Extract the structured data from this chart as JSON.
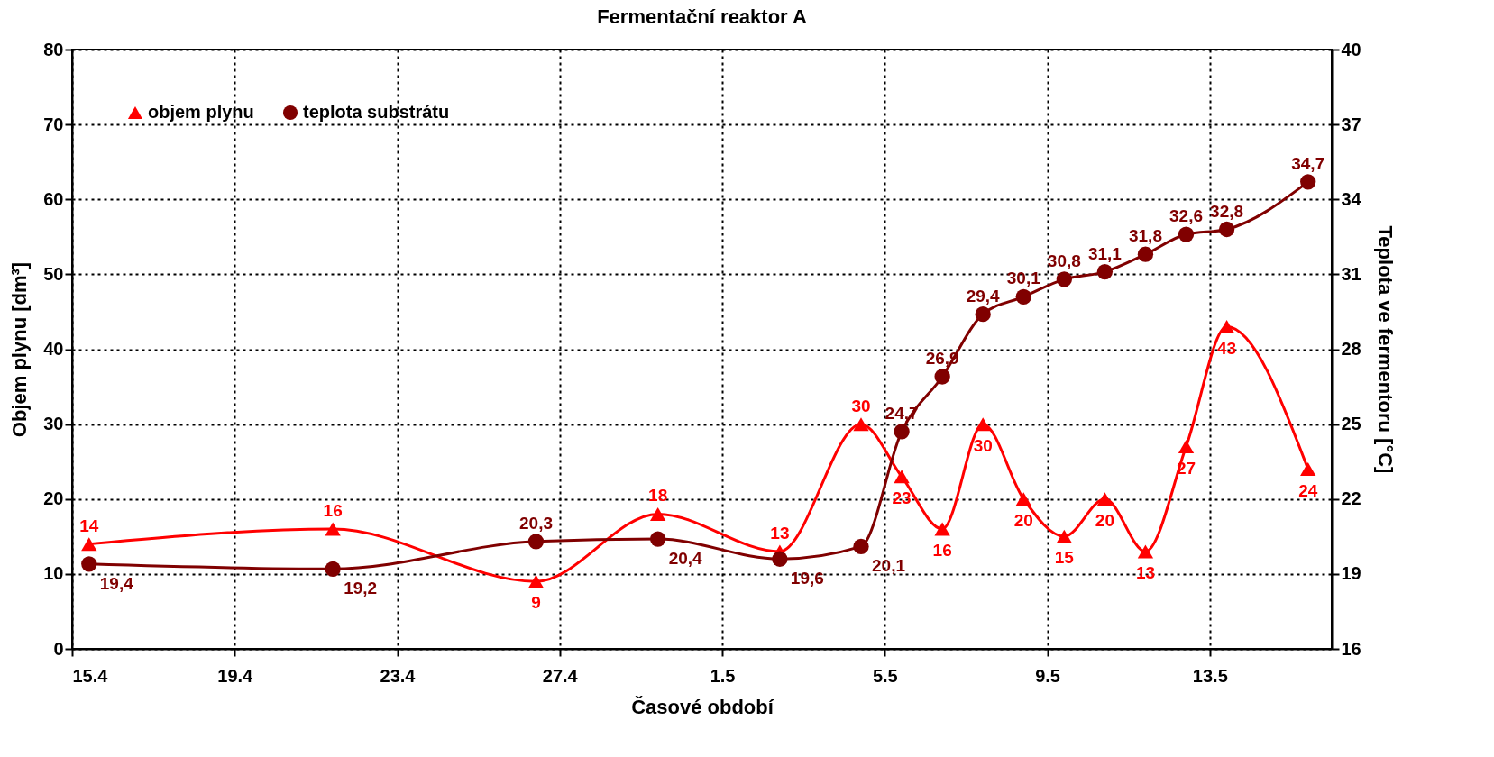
{
  "chart_data": {
    "type": "line",
    "title": "Fermentační reaktor A",
    "xlabel": "Časové období",
    "ylabel": "Objem plynu [dm³]",
    "y2label": "Teplota ve fermentoru [°C]",
    "x": [
      "--04-15T10:00",
      "--04-21T10:00",
      "--04-26T10:00",
      "--04-29T10:00",
      "--05-02T10:00",
      "--05-04T10:00",
      "--05-05T10:00",
      "--05-06T10:00",
      "--05-07T10:00",
      "--05-08T10:00",
      "--05-09T10:00",
      "--05-10T10:00",
      "--05-11T10:00",
      "--05-12T10:00",
      "--05-13T10:00",
      "--05-15T10:00"
    ],
    "series": [
      {
        "name": "objem plynu",
        "color": "#ff0000",
        "marker": "triangle",
        "values": [
          14,
          16,
          9,
          18,
          13,
          30,
          23,
          16,
          30,
          20,
          15,
          20,
          13,
          27,
          43,
          24
        ],
        "value_labels": [
          "14",
          "16",
          "9",
          "18",
          "13",
          "30",
          "23",
          "16",
          "30",
          "20",
          "15",
          "20",
          "13",
          "27",
          "43",
          "24"
        ]
      },
      {
        "name": "teplota substrátu",
        "color": "#800000",
        "marker": "circle",
        "axis": "y2",
        "values": [
          19.4,
          19.2,
          20.3,
          20.4,
          19.6,
          20.1,
          24.7,
          26.9,
          29.4,
          30.1,
          30.8,
          31.1,
          31.8,
          32.6,
          32.8,
          34.7
        ],
        "value_labels": [
          "19,4",
          "19,2",
          "20,3",
          "20,4",
          "19,6",
          "20,1",
          "24,7",
          "26,9",
          "29,4",
          "30,1",
          "30,8",
          "31,1",
          "31,8",
          "32,6",
          "32,8",
          "34,7"
        ]
      }
    ],
    "xlim": [
      "--04-15",
      "--05-16"
    ],
    "xticks": [
      {
        "value": "--04-15",
        "label": "15.4"
      },
      {
        "value": "--04-19",
        "label": "19.4"
      },
      {
        "value": "--04-23",
        "label": "23.4"
      },
      {
        "value": "--04-27",
        "label": "27.4"
      },
      {
        "value": "--05-01",
        "label": "1.5"
      },
      {
        "value": "--05-05",
        "label": "5.5"
      },
      {
        "value": "--05-09",
        "label": "9.5"
      },
      {
        "value": "--05-13",
        "label": "13.5"
      }
    ],
    "ylim": [
      0,
      80
    ],
    "yticks": [
      0,
      10,
      20,
      30,
      40,
      50,
      60,
      70,
      80
    ],
    "y2lim": [
      16,
      40
    ],
    "y2ticks": [
      16,
      19,
      22,
      25,
      28,
      31,
      34,
      37,
      40
    ],
    "grid": true,
    "legend": "top left",
    "line_style": "solid"
  }
}
